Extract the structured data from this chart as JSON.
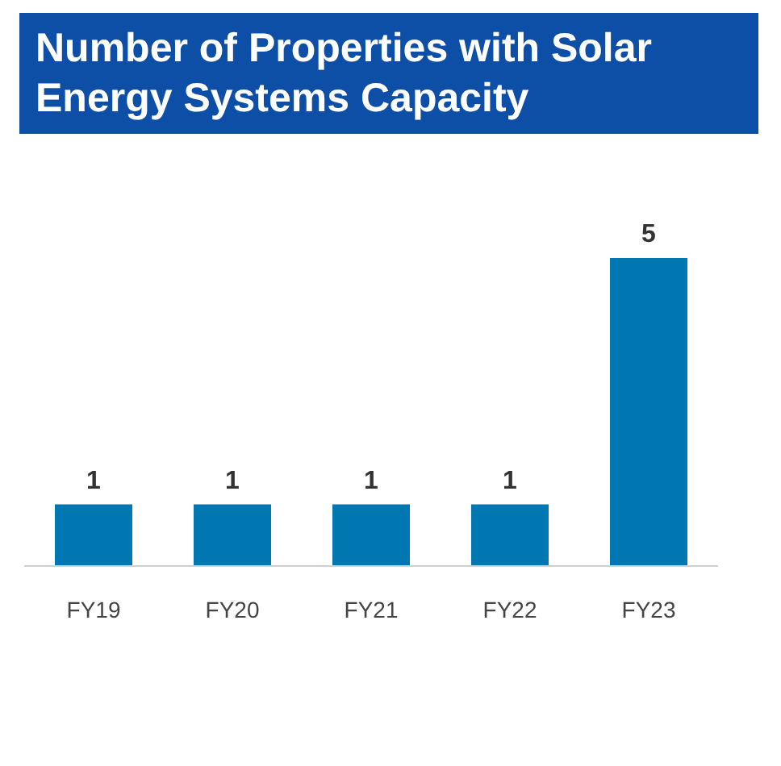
{
  "chart_data": {
    "type": "bar",
    "title": "Number of Properties with Solar Energy Systems Capacity",
    "categories": [
      "FY19",
      "FY20",
      "FY21",
      "FY22",
      "FY23"
    ],
    "values": [
      1,
      1,
      1,
      1,
      5
    ],
    "color": "#0077b0",
    "data_labels": true
  }
}
